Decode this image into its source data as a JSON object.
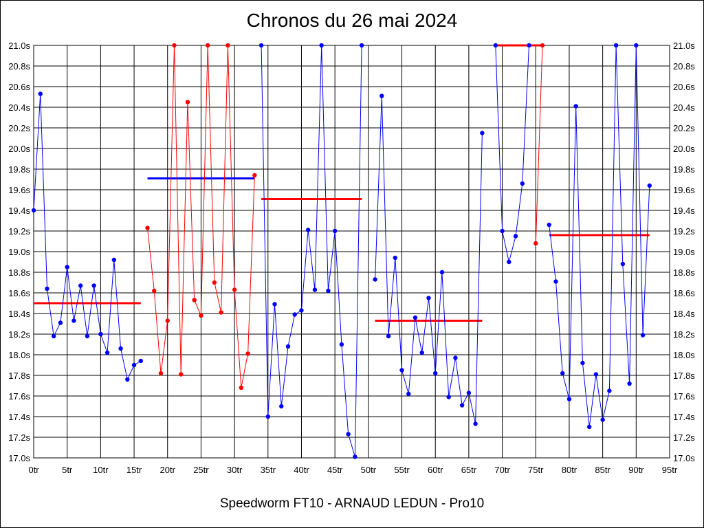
{
  "chart_data": {
    "type": "line",
    "title": "Chronos du 26 mai 2024",
    "subtitle": "Speedworm FT10 - ARNAUD LEDUN - Pro10",
    "xlabel": "",
    "ylabel": "",
    "xlim": [
      0,
      95
    ],
    "ylim": [
      17.0,
      21.0
    ],
    "grid": true,
    "x_ticks": [
      0,
      5,
      10,
      15,
      20,
      25,
      30,
      35,
      40,
      45,
      50,
      55,
      60,
      65,
      70,
      75,
      80,
      85,
      90,
      95
    ],
    "x_tick_labels": [
      "0tr",
      "5tr",
      "10tr",
      "15tr",
      "20tr",
      "25tr",
      "30tr",
      "35tr",
      "40tr",
      "45tr",
      "50tr",
      "55tr",
      "60tr",
      "65tr",
      "70tr",
      "75tr",
      "80tr",
      "85tr",
      "90tr",
      "95tr"
    ],
    "y_ticks": [
      17.0,
      17.2,
      17.4,
      17.6,
      17.8,
      18.0,
      18.2,
      18.4,
      18.6,
      18.8,
      19.0,
      19.2,
      19.4,
      19.6,
      19.8,
      20.0,
      20.2,
      20.4,
      20.6,
      20.8,
      21.0
    ],
    "y_tick_labels": [
      "17.0s",
      "17.2s",
      "17.4s",
      "17.6s",
      "17.8s",
      "18.0s",
      "18.2s",
      "18.4s",
      "18.6s",
      "18.8s",
      "19.0s",
      "19.2s",
      "19.4s",
      "19.6s",
      "19.8s",
      "20.0s",
      "20.2s",
      "20.4s",
      "20.6s",
      "20.8s",
      "21.0s"
    ],
    "series": [
      {
        "color": "#0000ff",
        "x": [
          0,
          1,
          2,
          3,
          4,
          5,
          6,
          7,
          8,
          9,
          10,
          11,
          12,
          13,
          14,
          15,
          16
        ],
        "y": [
          19.4,
          20.53,
          18.64,
          18.18,
          18.31,
          18.85,
          18.33,
          18.67,
          18.18,
          18.67,
          18.2,
          18.02,
          18.92,
          18.06,
          17.76,
          17.9,
          17.94
        ]
      },
      {
        "color": "#ff0000",
        "x": [
          17,
          18,
          19,
          20,
          21,
          22,
          23,
          24,
          25,
          26,
          27,
          28,
          29,
          30,
          31,
          32,
          33
        ],
        "y": [
          19.23,
          18.62,
          17.82,
          18.33,
          21.0,
          17.81,
          20.45,
          18.53,
          18.38,
          21.0,
          18.7,
          18.41,
          21.0,
          18.63,
          17.68,
          18.01,
          19.74
        ]
      },
      {
        "color": "#0000ff",
        "x": [
          34,
          35,
          36,
          37,
          38,
          39,
          40,
          41,
          42,
          43,
          44,
          45,
          46,
          47,
          48,
          49
        ],
        "y": [
          21.0,
          17.4,
          18.49,
          17.5,
          18.08,
          18.39,
          18.43,
          19.21,
          18.63,
          21.0,
          18.62,
          19.2,
          18.1,
          17.23,
          17.01,
          21.0
        ]
      },
      {
        "color": "#0000ff",
        "x": [
          51,
          52,
          53,
          54,
          55,
          56,
          57,
          58,
          59,
          60,
          61,
          62,
          63,
          64,
          65,
          66,
          67
        ],
        "y": [
          18.73,
          20.51,
          18.18,
          18.94,
          17.85,
          17.62,
          18.36,
          18.02,
          18.55,
          17.82,
          18.8,
          17.59,
          17.97,
          17.51,
          17.63,
          17.33,
          20.15
        ]
      },
      {
        "color": "#0000ff",
        "x": [
          69,
          70,
          71,
          72,
          73,
          74
        ],
        "y": [
          21.0,
          19.2,
          18.9,
          19.15,
          19.66,
          21.0
        ]
      },
      {
        "color": "#ff0000",
        "x": [
          75,
          76
        ],
        "y": [
          19.08,
          21.0
        ]
      },
      {
        "color": "#0000ff",
        "x": [
          77,
          78,
          79,
          80,
          81,
          82,
          83,
          84,
          85,
          86,
          87,
          88,
          89,
          90,
          91,
          92
        ],
        "y": [
          19.26,
          18.71,
          17.82,
          17.57,
          20.41,
          17.92,
          17.3,
          17.81,
          17.37,
          17.65,
          21.0,
          18.88,
          17.72,
          21.0,
          18.19,
          19.64
        ]
      }
    ],
    "averages": [
      {
        "color": "#ff0000",
        "x": [
          0,
          16
        ],
        "y": 18.5
      },
      {
        "color": "#0000ff",
        "x": [
          17,
          33
        ],
        "y": 19.71
      },
      {
        "color": "#ff0000",
        "x": [
          34,
          49
        ],
        "y": 19.51
      },
      {
        "color": "#ff0000",
        "x": [
          51,
          67
        ],
        "y": 18.33
      },
      {
        "color": "#ff0000",
        "x": [
          69,
          76
        ],
        "y": 21.0
      },
      {
        "color": "#ff0000",
        "x": [
          77,
          92
        ],
        "y": 19.16
      }
    ]
  }
}
